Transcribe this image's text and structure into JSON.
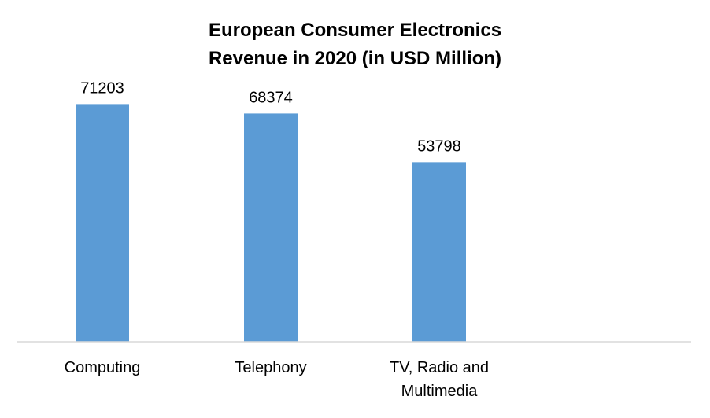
{
  "chart_data": {
    "type": "bar",
    "title_lines": [
      "European Consumer Electronics",
      "Revenue in 2020 (in USD Million)"
    ],
    "categories": [
      [
        "Computing"
      ],
      [
        "Telephony"
      ],
      [
        "TV, Radio and",
        "Multimedia"
      ]
    ],
    "values": [
      71203,
      68374,
      53798
    ],
    "data_labels": [
      "71203",
      "68374",
      "53798"
    ],
    "bar_color": "#5b9bd5",
    "axis_color": "#d9d9d9",
    "ylim": [
      0,
      80000
    ],
    "grid": false,
    "legend": false
  }
}
